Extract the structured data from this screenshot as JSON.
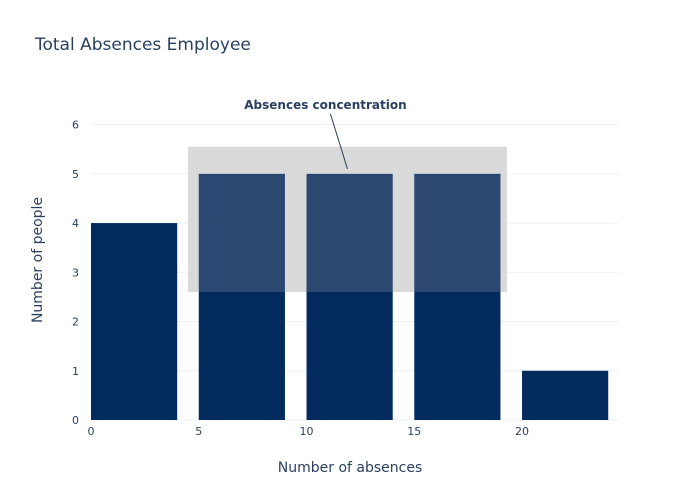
{
  "chart_data": {
    "type": "bar",
    "title": "Total Absences Employee",
    "xlabel": "Number of absences",
    "ylabel": "Number of people",
    "bins": [
      {
        "start": 0,
        "end": 4,
        "value": 4
      },
      {
        "start": 5,
        "end": 9,
        "value": 5
      },
      {
        "start": 10,
        "end": 14,
        "value": 5
      },
      {
        "start": 15,
        "end": 19,
        "value": 5
      },
      {
        "start": 20,
        "end": 24,
        "value": 1
      }
    ],
    "xlim": [
      0,
      24.5
    ],
    "ylim": [
      0,
      6.5
    ],
    "x_ticks": [
      0,
      5,
      10,
      15,
      20
    ],
    "y_ticks": [
      0,
      1,
      2,
      3,
      4,
      5,
      6
    ],
    "grid": true,
    "bar_color": "#032b5e",
    "annotation": {
      "text": "Absences concentration",
      "point_x": 11.9,
      "point_y": 5.1,
      "highlight_region": {
        "x0": 4.5,
        "x1": 19.3,
        "y0": 2.6,
        "y1": 5.55
      },
      "highlight_color": "#d6d6d6"
    }
  }
}
